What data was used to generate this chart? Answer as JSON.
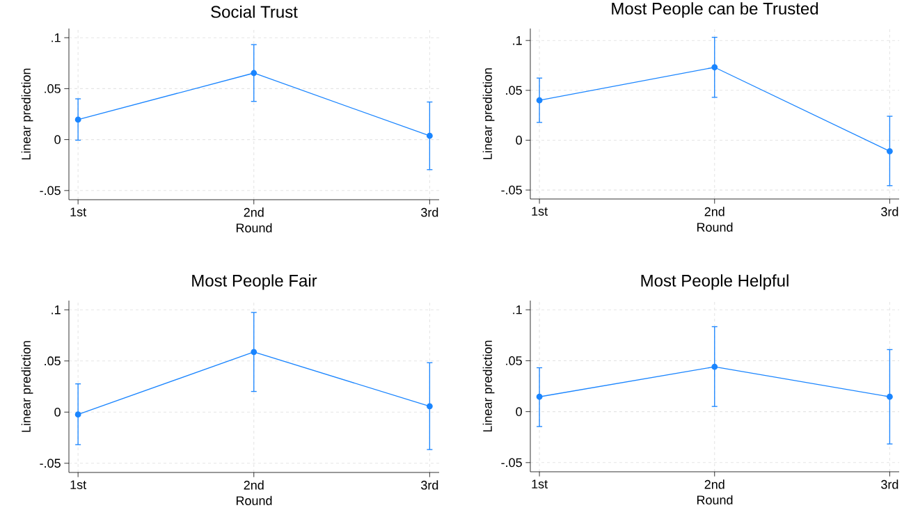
{
  "chart_data": [
    {
      "type": "line",
      "title": "Social Trust",
      "xlabel": "Round",
      "ylabel": "Linear prediction",
      "categories": [
        "1st",
        "2nd",
        "3rd"
      ],
      "series": [
        {
          "color": "#1a85ff",
          "values": [
            0.0196,
            0.0653,
            0.0037
          ],
          "errors": [
            [
              -0.0006,
              0.04
            ],
            [
              0.0375,
              0.0932
            ],
            [
              -0.0295,
              0.0369
            ]
          ]
        }
      ],
      "ylim": [
        -0.059,
        0.109
      ],
      "yticks": [
        {
          "value": -0.05,
          "label": "-.05"
        },
        {
          "value": 0,
          "label": "0"
        },
        {
          "value": 0.05,
          "label": ".05"
        },
        {
          "value": 0.1,
          "label": ".1"
        }
      ],
      "grid": true,
      "marker": "circle"
    },
    {
      "type": "line",
      "title": "Most People can be Trusted",
      "xlabel": "Round",
      "ylabel": "Linear prediction",
      "categories": [
        "1st",
        "2nd",
        "3rd"
      ],
      "series": [
        {
          "color": "#1a85ff",
          "values": [
            0.04,
            0.0731,
            -0.0111
          ],
          "errors": [
            [
              0.0178,
              0.0623
            ],
            [
              0.043,
              0.1032
            ],
            [
              -0.0456,
              0.024
            ]
          ]
        }
      ],
      "ylim": [
        -0.059,
        0.112
      ],
      "yticks": [
        {
          "value": -0.05,
          "label": "-.05"
        },
        {
          "value": 0,
          "label": "0"
        },
        {
          "value": 0.05,
          "label": ".05"
        },
        {
          "value": 0.1,
          "label": ".1"
        }
      ],
      "grid": true,
      "marker": "circle"
    },
    {
      "type": "line",
      "title": "Most People Fair",
      "xlabel": "Round",
      "ylabel": "Linear prediction",
      "categories": [
        "1st",
        "2nd",
        "3rd"
      ],
      "series": [
        {
          "color": "#1a85ff",
          "values": [
            -0.0023,
            0.0588,
            0.0057
          ],
          "errors": [
            [
              -0.0318,
              0.0276
            ],
            [
              0.0202,
              0.0974
            ],
            [
              -0.0366,
              0.0483
            ]
          ]
        }
      ],
      "ylim": [
        -0.059,
        0.109
      ],
      "yticks": [
        {
          "value": -0.05,
          "label": "-.05"
        },
        {
          "value": 0,
          "label": "0"
        },
        {
          "value": 0.05,
          "label": ".05"
        },
        {
          "value": 0.1,
          "label": ".1"
        }
      ],
      "grid": true,
      "marker": "circle"
    },
    {
      "type": "line",
      "title": "Most People Helpful",
      "xlabel": "Round",
      "ylabel": "Linear prediction",
      "categories": [
        "1st",
        "2nd",
        "3rd"
      ],
      "series": [
        {
          "color": "#1a85ff",
          "values": [
            0.0146,
            0.044,
            0.0146
          ],
          "errors": [
            [
              -0.0146,
              0.0431
            ],
            [
              0.0051,
              0.0834
            ],
            [
              -0.0317,
              0.0609
            ]
          ]
        }
      ],
      "ylim": [
        -0.059,
        0.109
      ],
      "yticks": [
        {
          "value": -0.05,
          "label": "-.05"
        },
        {
          "value": 0,
          "label": "0"
        },
        {
          "value": 0.05,
          "label": ".05"
        },
        {
          "value": 0.1,
          "label": ".1"
        }
      ],
      "grid": true,
      "marker": "circle"
    }
  ]
}
